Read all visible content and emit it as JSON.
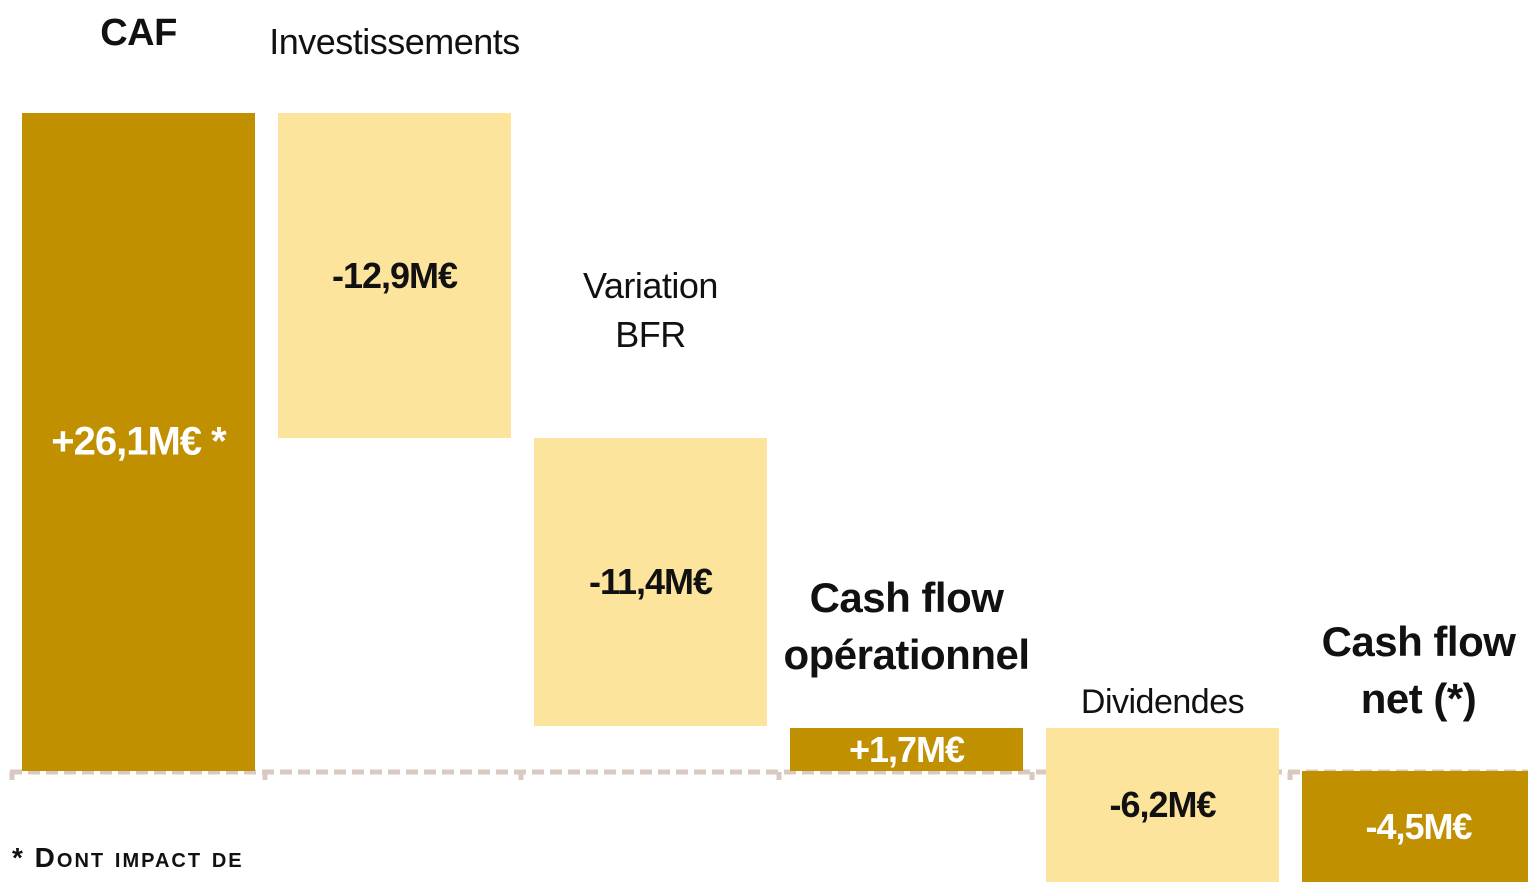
{
  "chart_data": {
    "type": "waterfall",
    "categories": [
      "CAF",
      "Investissements",
      "Variation BFR",
      "Cash flow opérationnel",
      "Dividendes",
      "Cash flow net (*)"
    ],
    "values": [
      26.1,
      -12.9,
      -11.4,
      1.7,
      -6.2,
      -4.5
    ],
    "value_labels": [
      "+26,1M€ *",
      "-12,9M€",
      "-11,4M€",
      "+1,7M€",
      "-6,2M€",
      "-4,5M€"
    ],
    "measure": [
      "absolute",
      "relative",
      "relative",
      "total",
      "relative",
      "total"
    ],
    "colors": [
      "#c09000",
      "#fde49c",
      "#fde49c",
      "#c09000",
      "#fde49c",
      "#c09000"
    ],
    "footnote": "* Dont impact de"
  }
}
